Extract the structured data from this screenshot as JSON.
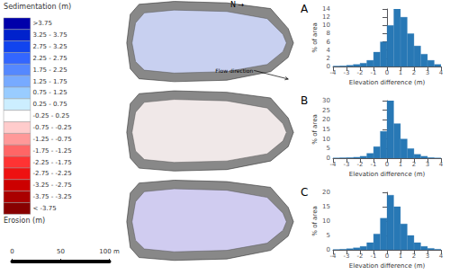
{
  "chart_data": [
    {
      "type": "color_legend",
      "title": "Sedimentation (m)",
      "categories": [
        ">3.75",
        "3.25 - 3.75",
        "2.75 - 3.25",
        "2.25 - 2.75",
        "1.75 - 2.25",
        "1.25 - 1.75",
        "0.75 - 1.25",
        "0.25 - 0.75",
        "-0.25 - 0.25",
        "-0.75 - -0.25",
        "-1.25 - -0.75",
        "-1.75 - -1.25",
        "-2.25 - -1.75",
        "-2.75 - -2.25",
        "-3.25 - -2.75",
        "-3.75 - -3.25",
        "< -3.75"
      ],
      "colors": [
        "#0000AA",
        "#0022CC",
        "#1144EE",
        "#3366FF",
        "#5588FF",
        "#77AAFF",
        "#99CCFF",
        "#CCEEFF",
        "#FFFFFF",
        "#FFCCCC",
        "#FF9999",
        "#FF6666",
        "#FF3333",
        "#EE1111",
        "#CC0000",
        "#AA0000",
        "#880000"
      ],
      "annotations": [
        "Erosion (m)"
      ]
    },
    {
      "type": "scale_bar",
      "xlim": [
        0,
        100
      ],
      "xticks": [
        0,
        50,
        {
          "value": 100,
          "label": "100 m"
        }
      ]
    },
    {
      "type": "map",
      "colors": [
        "#C8D0F0",
        "#F0E8E8",
        "#D0CCF0"
      ],
      "annotations": [
        "N →",
        "Flow direction"
      ]
    },
    {
      "type": "histogram",
      "title": "A",
      "bins": [
        -4.0,
        -3.5,
        -3.0,
        -2.5,
        -2.0,
        -1.5,
        -1.0,
        -0.5,
        0.0,
        0.5,
        1.0,
        1.5,
        2.0,
        2.5,
        3.0,
        3.5,
        4.0
      ],
      "values": [
        0.1,
        0.15,
        0.3,
        0.5,
        0.8,
        1.5,
        3.5,
        6.0,
        10.0,
        14.0,
        12.0,
        8.0,
        5.0,
        3.0,
        1.5,
        0.5
      ],
      "color": "#2878B5",
      "xlabel": "Elevation difference (m)",
      "ylabel": "% of area",
      "xlim": [
        -4,
        4
      ],
      "xticks": [
        -4,
        -3,
        -2,
        -1,
        0,
        1,
        2,
        3,
        4
      ],
      "ylim": [
        0,
        14
      ],
      "yticks": [
        0,
        2,
        4,
        6,
        8,
        10,
        12,
        14
      ],
      "grid": false
    },
    {
      "type": "histogram",
      "title": "B",
      "bins": [
        -4.0,
        -3.5,
        -3.0,
        -2.5,
        -2.0,
        -1.5,
        -1.0,
        -0.5,
        0.0,
        0.5,
        1.0,
        1.5,
        2.0,
        2.5,
        3.0,
        3.5,
        4.0
      ],
      "values": [
        0.1,
        0.2,
        0.3,
        0.5,
        1.0,
        2.5,
        6.0,
        14.0,
        30.0,
        18.0,
        10.0,
        5.0,
        2.0,
        1.0,
        0.3,
        0.1
      ],
      "color": "#2878B5",
      "xlabel": "Elevation difference (m)",
      "ylabel": "% of area",
      "xlim": [
        -4,
        4
      ],
      "xticks": [
        -4,
        -3,
        -2,
        -1,
        0,
        1,
        2,
        3,
        4
      ],
      "ylim": [
        0,
        30
      ],
      "yticks": [
        0,
        5,
        10,
        15,
        20,
        25,
        30
      ],
      "grid": false
    },
    {
      "type": "histogram",
      "title": "C",
      "bins": [
        -4.0,
        -3.5,
        -3.0,
        -2.5,
        -2.0,
        -1.5,
        -1.0,
        -0.5,
        0.0,
        0.5,
        1.0,
        1.5,
        2.0,
        2.5,
        3.0,
        3.5,
        4.0
      ],
      "values": [
        0.1,
        0.2,
        0.4,
        0.7,
        1.2,
        2.5,
        5.5,
        11.0,
        19.0,
        15.0,
        9.0,
        5.0,
        2.5,
        1.2,
        0.5,
        0.2
      ],
      "color": "#2878B5",
      "xlabel": "Elevation difference (m)",
      "ylabel": "% of area",
      "xlim": [
        -4,
        4
      ],
      "xticks": [
        -4,
        -3,
        -2,
        -1,
        0,
        1,
        2,
        3,
        4
      ],
      "ylim": [
        0,
        20
      ],
      "yticks": [
        0,
        5,
        10,
        15,
        20
      ],
      "grid": false
    }
  ]
}
